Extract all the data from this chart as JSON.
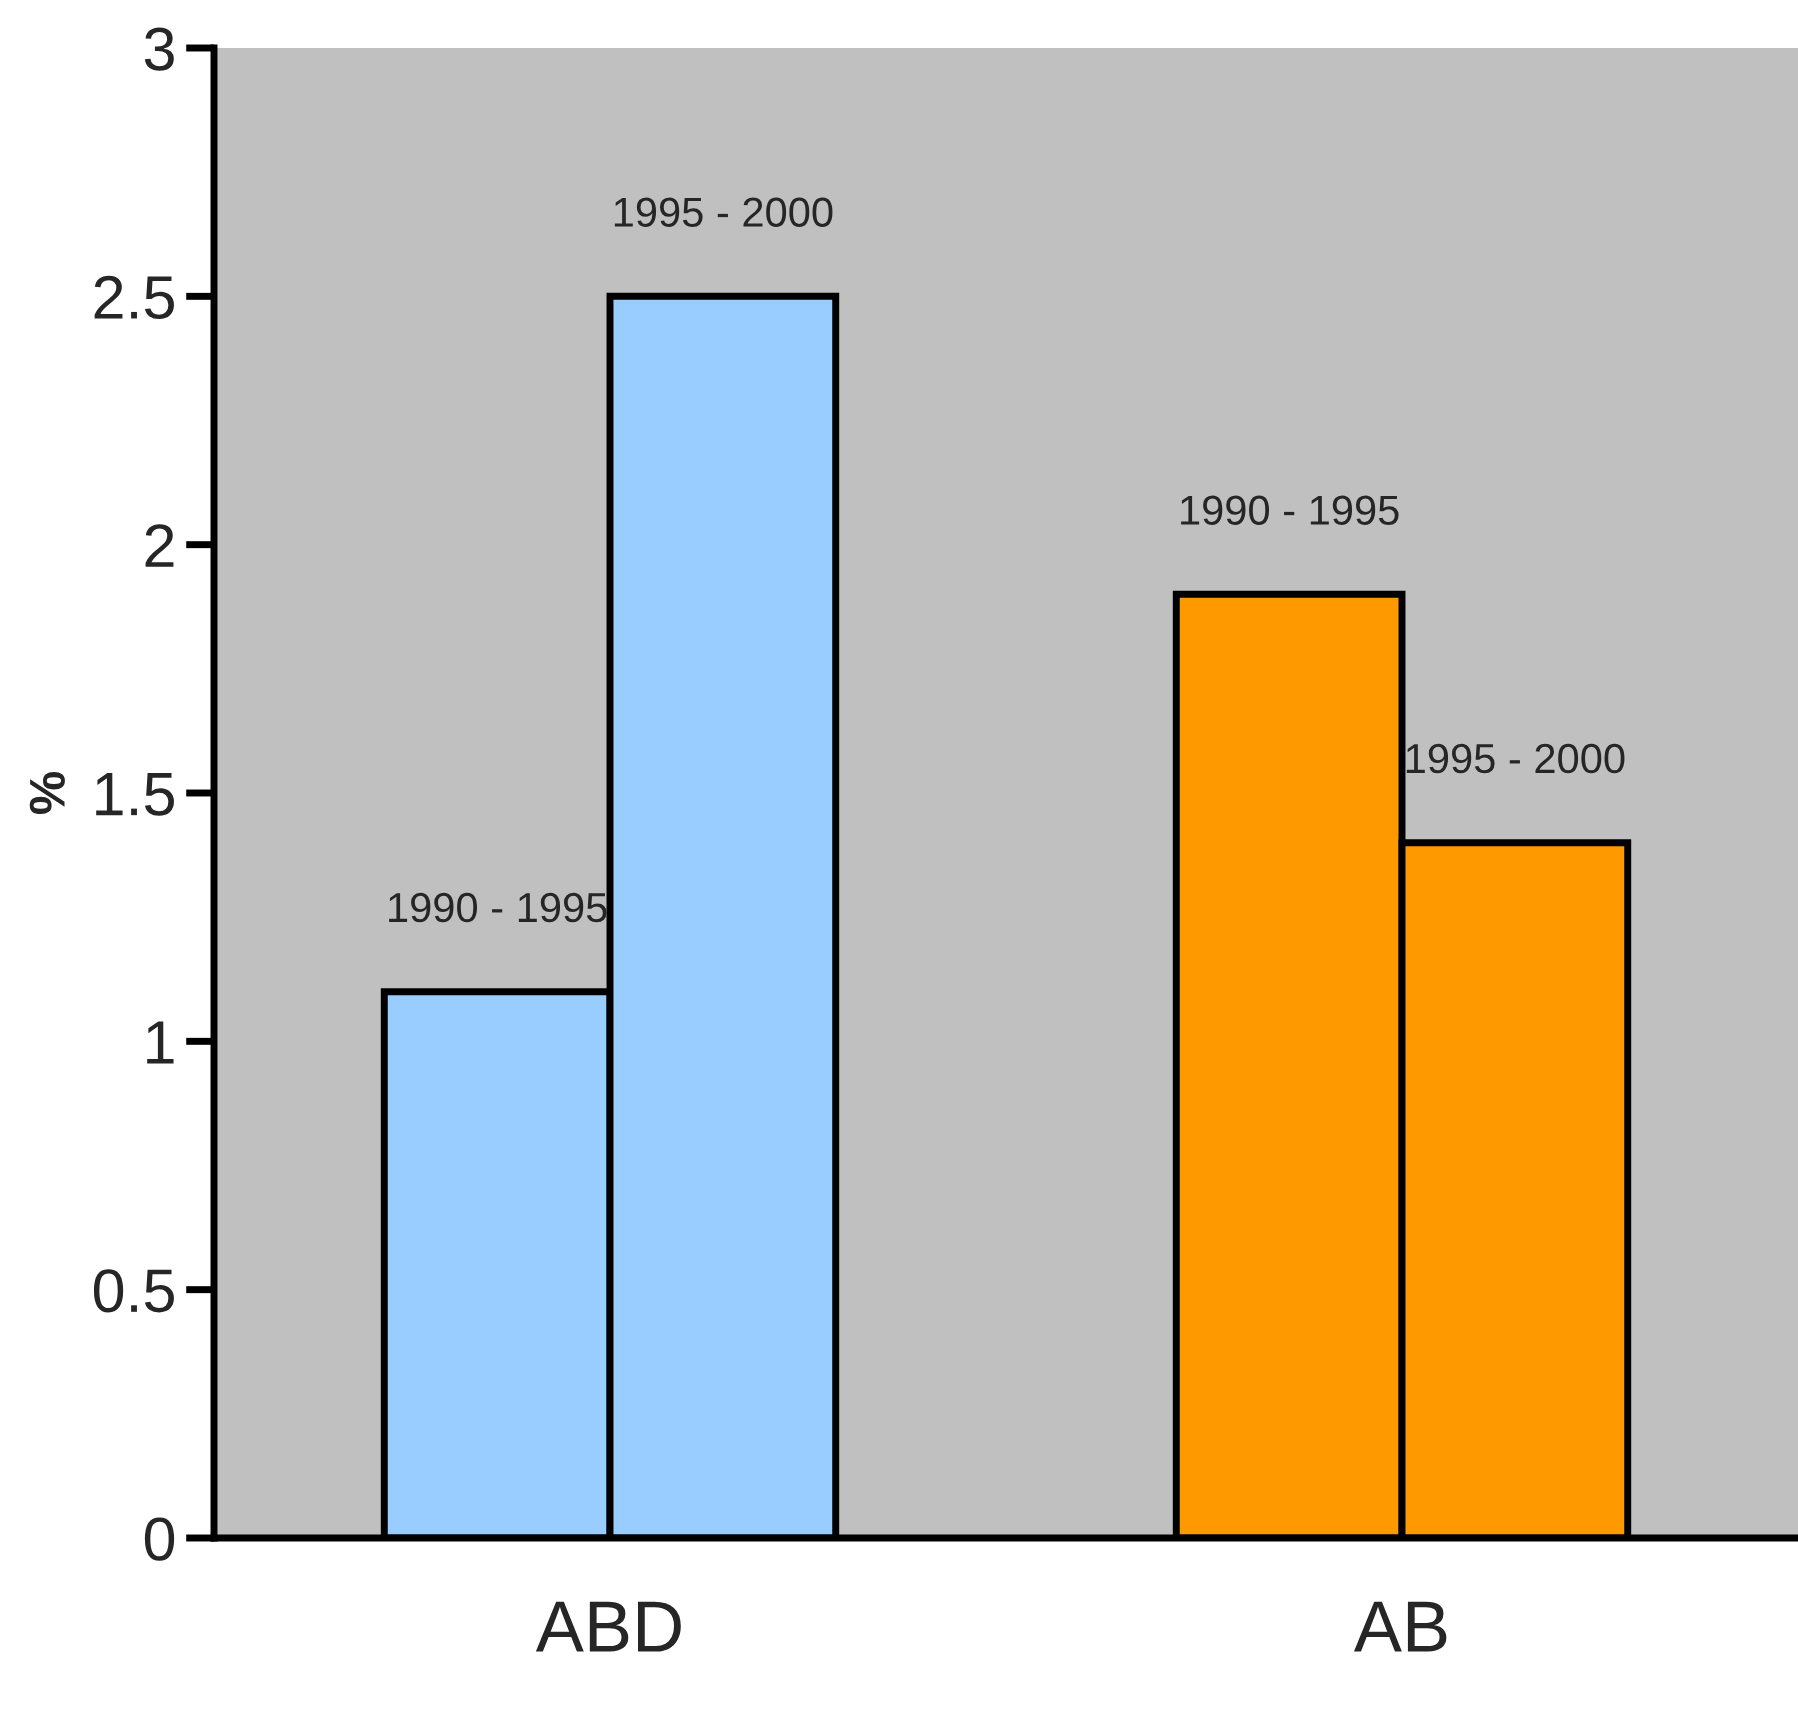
{
  "chart_data": {
    "type": "bar",
    "ylabel": "%",
    "categories": [
      "ABD",
      "AB"
    ],
    "series": [
      {
        "name": "1990 - 1995",
        "colors": [
          "#99ccff",
          "#ff9900"
        ],
        "values": [
          1.1,
          1.9
        ]
      },
      {
        "name": "1995 - 2000",
        "colors": [
          "#99ccff",
          "#ff9900"
        ],
        "values": [
          2.5,
          1.4
        ]
      }
    ],
    "ylim": [
      0,
      3
    ],
    "yticks": [
      0,
      0.5,
      1,
      1.5,
      2,
      2.5,
      3
    ],
    "grid": false,
    "legend": false
  }
}
